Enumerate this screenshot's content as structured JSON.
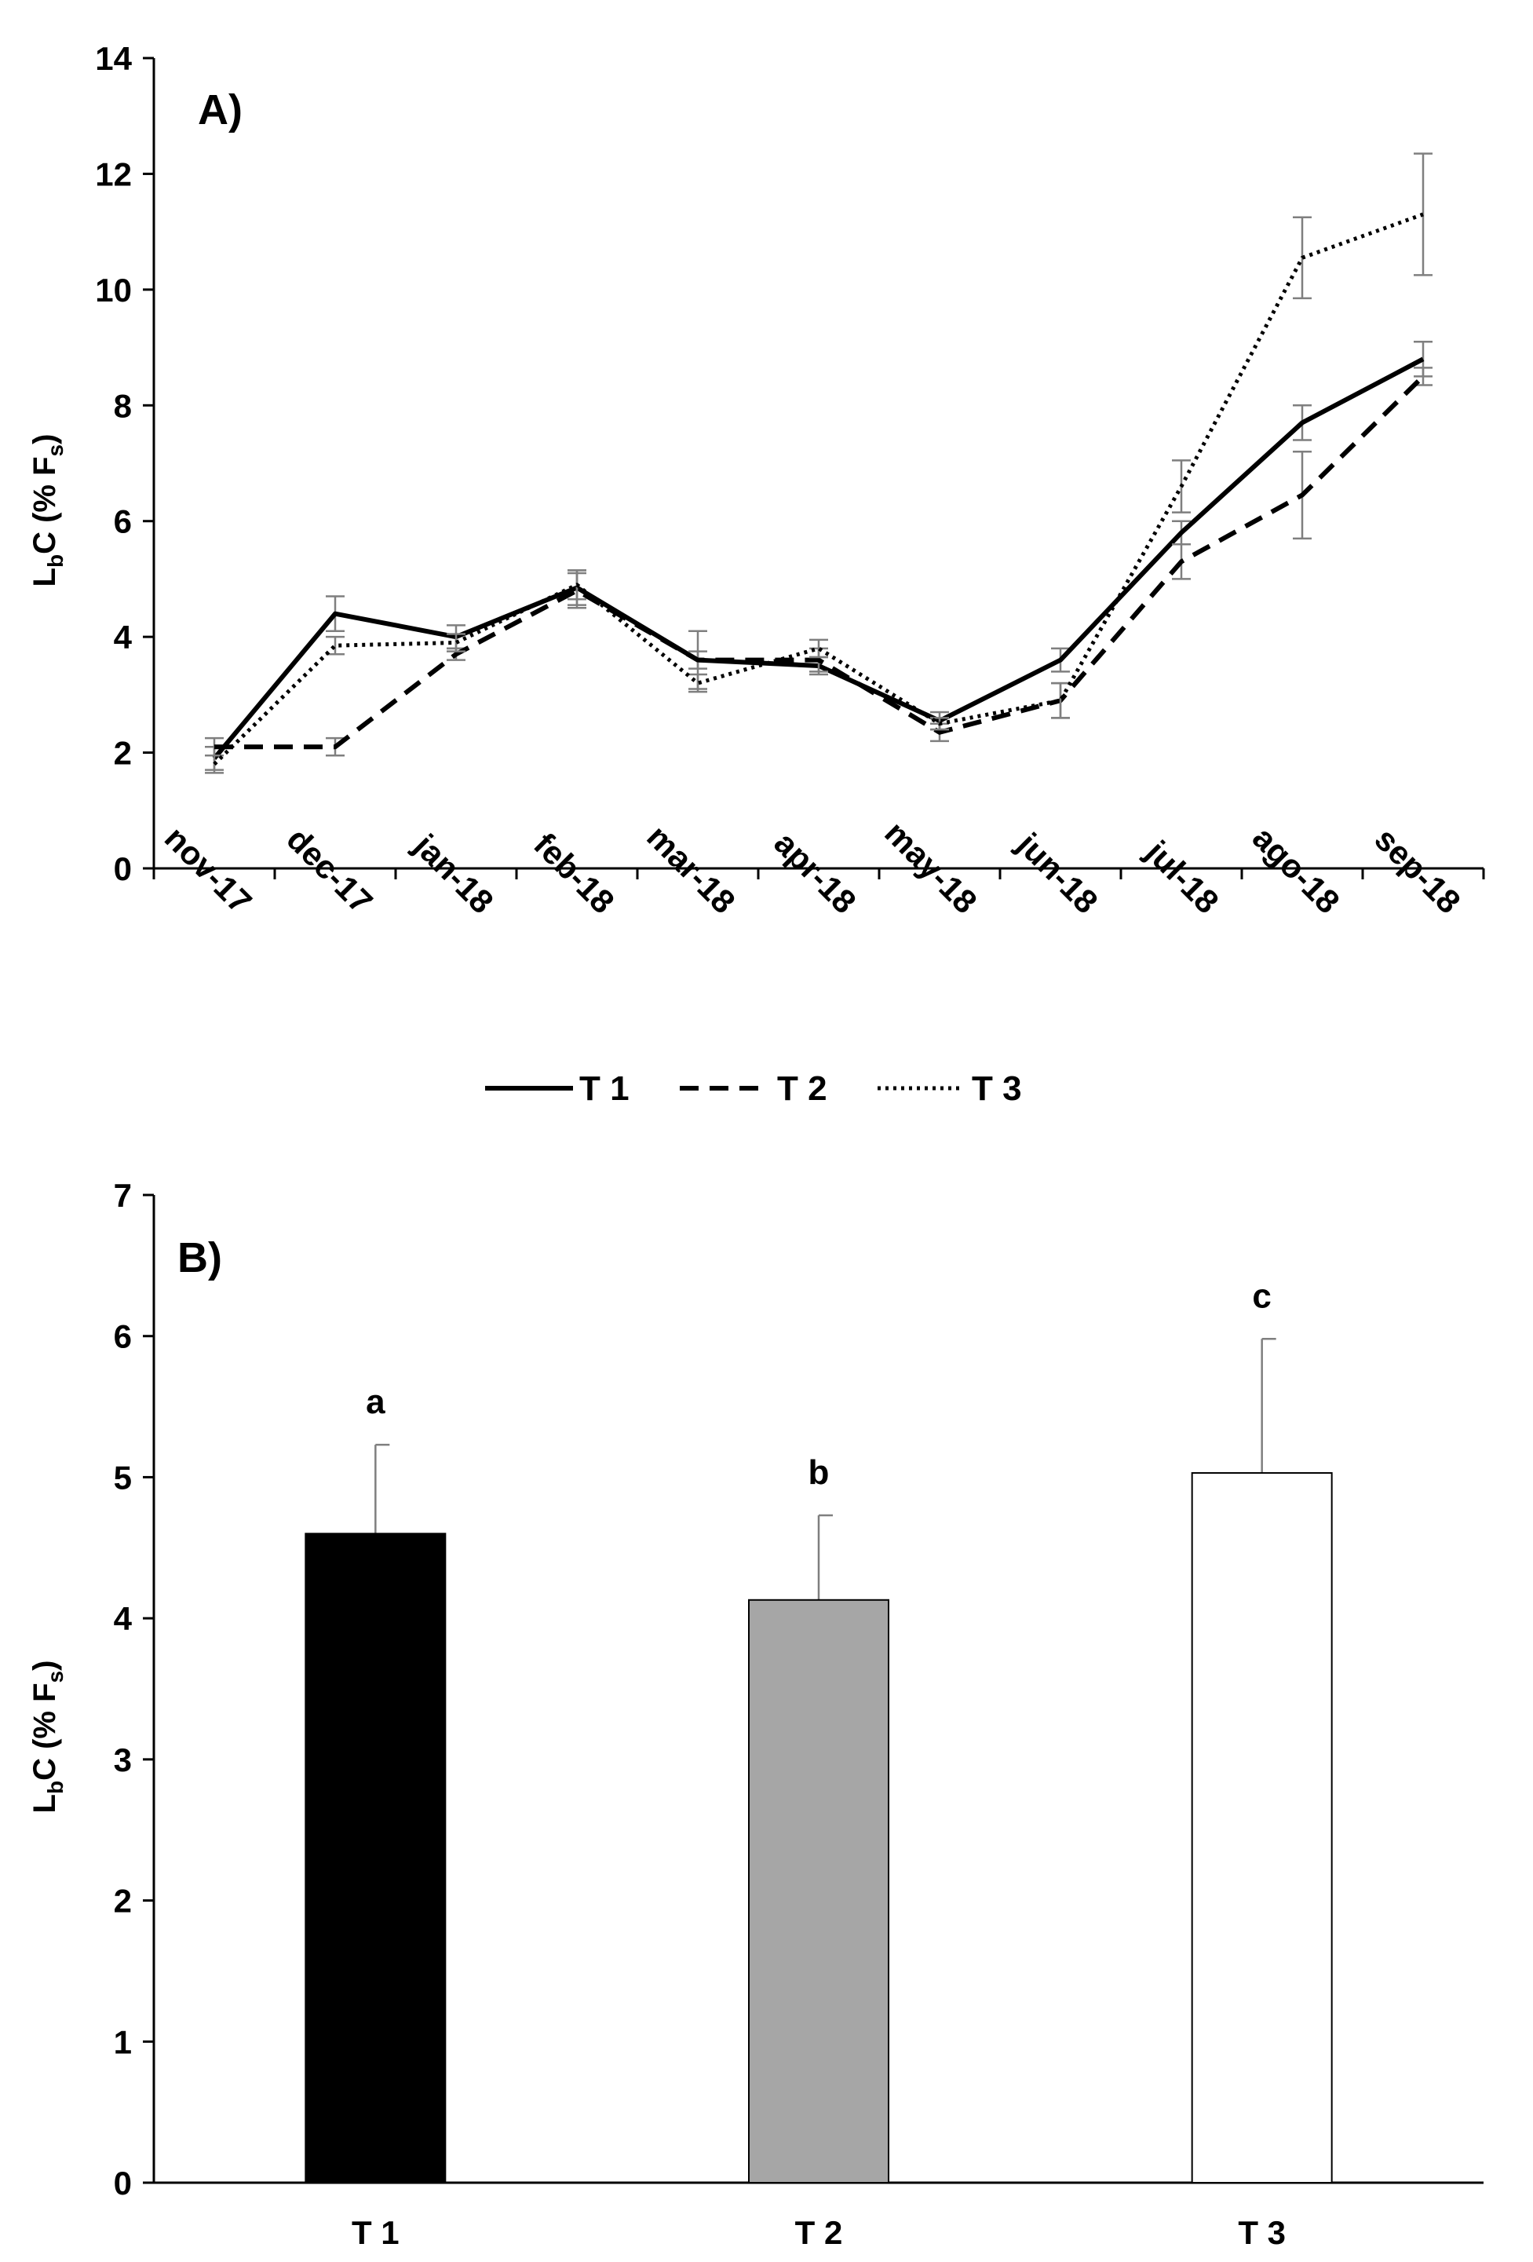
{
  "chart_data": [
    {
      "type": "line",
      "panel_label": "A)",
      "ylabel": {
        "main": "L",
        "sub": "b",
        "mid": "C (%  F",
        "sub2": "s",
        "end": ")"
      },
      "ylim": [
        0,
        14
      ],
      "yticks": [
        "0",
        "2",
        "4",
        "6",
        "8",
        "10",
        "12",
        "14"
      ],
      "categories": [
        "nov-17",
        "dec-17",
        "jan-18",
        "feb-18",
        "mar-18",
        "apr-18",
        "may-18",
        "jun-18",
        "jul-18",
        "ago-18",
        "sep-18"
      ],
      "series": [
        {
          "name": "T 1",
          "style": "solid",
          "values": [
            1.9,
            4.4,
            4.0,
            4.85,
            3.6,
            3.5,
            2.55,
            3.6,
            5.8,
            7.7,
            8.8
          ],
          "errors": [
            0.2,
            0.3,
            0.2,
            0.3,
            0.5,
            0.15,
            0.15,
            0.2,
            0.2,
            0.3,
            0.3
          ]
        },
        {
          "name": "T 2",
          "style": "dashed",
          "values": [
            2.1,
            2.1,
            3.7,
            4.8,
            3.6,
            3.6,
            2.35,
            2.9,
            5.3,
            6.45,
            8.5
          ],
          "errors": [
            0.15,
            0.15,
            0.1,
            0.3,
            0.15,
            0.2,
            0.15,
            0.3,
            0.3,
            0.75,
            0.15
          ]
        },
        {
          "name": "T 3",
          "style": "dotted",
          "values": [
            1.8,
            3.85,
            3.9,
            4.9,
            3.2,
            3.8,
            2.5,
            2.9,
            6.6,
            10.55,
            11.3
          ],
          "errors": [
            0.15,
            0.15,
            0.15,
            0.25,
            0.15,
            0.15,
            0.1,
            0.3,
            0.45,
            0.7,
            1.05
          ]
        }
      ],
      "legend": [
        "T 1",
        "T 2",
        "T 3"
      ],
      "legend_position": "bottom"
    },
    {
      "type": "bar",
      "panel_label": "B)",
      "ylabel": {
        "main": "L",
        "sub": "b",
        "mid": "C (%  F",
        "sub2": "s",
        "end": ")"
      },
      "ylim": [
        0,
        7
      ],
      "yticks": [
        "0",
        "1",
        "2",
        "3",
        "4",
        "5",
        "6",
        "7"
      ],
      "categories": [
        "T 1",
        "T 2",
        "T 3"
      ],
      "values": [
        4.6,
        4.13,
        5.03
      ],
      "errors": [
        0.63,
        0.6,
        0.95
      ],
      "colors": [
        "#000000",
        "#a6a6a6",
        "#ffffff"
      ],
      "significance": [
        "a",
        "b",
        "c"
      ]
    }
  ]
}
